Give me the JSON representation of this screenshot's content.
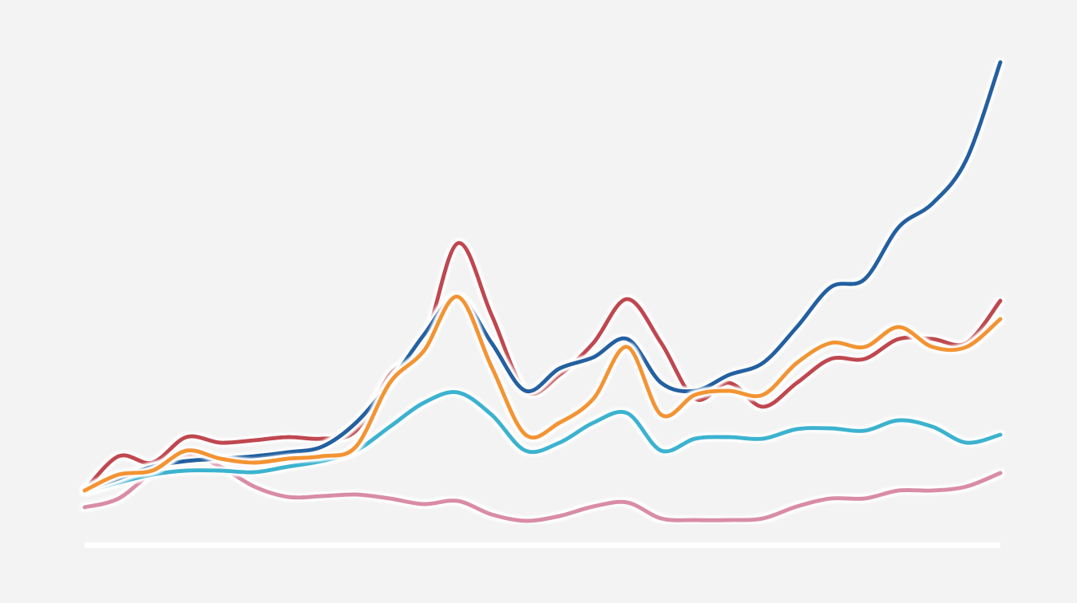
{
  "chart_data": {
    "type": "line",
    "x": [
      0,
      1,
      2,
      3,
      4,
      5,
      6,
      7,
      8,
      9,
      10,
      11,
      12,
      13,
      14,
      15,
      16,
      17,
      18,
      19,
      20,
      21,
      22,
      23,
      24,
      25,
      26,
      27
    ],
    "xlim": [
      0,
      27
    ],
    "ylim": [
      0,
      620
    ],
    "series": [
      {
        "color": "#d98ca6",
        "values": [
          47,
          58,
          91,
          113,
          98,
          73,
          60,
          61,
          63,
          58,
          51,
          55,
          38,
          30,
          36,
          48,
          53,
          33,
          31,
          31,
          33,
          48,
          58,
          58,
          68,
          68,
          73,
          90
        ]
      },
      {
        "color": "#3bb3d0",
        "values": [
          66,
          78,
          88,
          93,
          93,
          91,
          98,
          105,
          118,
          148,
          178,
          191,
          163,
          118,
          128,
          153,
          165,
          118,
          133,
          135,
          133,
          145,
          146,
          143,
          156,
          148,
          128,
          138
        ]
      },
      {
        "color": "#c0474f",
        "values": [
          68,
          111,
          103,
          135,
          128,
          131,
          135,
          133,
          143,
          213,
          253,
          378,
          288,
          193,
          213,
          253,
          308,
          253,
          183,
          203,
          173,
          203,
          233,
          233,
          258,
          258,
          253,
          306
        ]
      },
      {
        "color": "#2160a1",
        "values": [
          68,
          83,
          98,
          105,
          108,
          111,
          116,
          123,
          153,
          203,
          263,
          311,
          253,
          193,
          221,
          235,
          258,
          203,
          193,
          213,
          228,
          273,
          323,
          333,
          398,
          428,
          483,
          605
        ]
      },
      {
        "color": "#f39433",
        "values": [
          68,
          88,
          93,
          118,
          108,
          103,
          108,
          111,
          123,
          203,
          243,
          311,
          223,
          138,
          153,
          183,
          248,
          163,
          188,
          193,
          188,
          228,
          253,
          248,
          273,
          248,
          248,
          283
        ]
      }
    ]
  }
}
